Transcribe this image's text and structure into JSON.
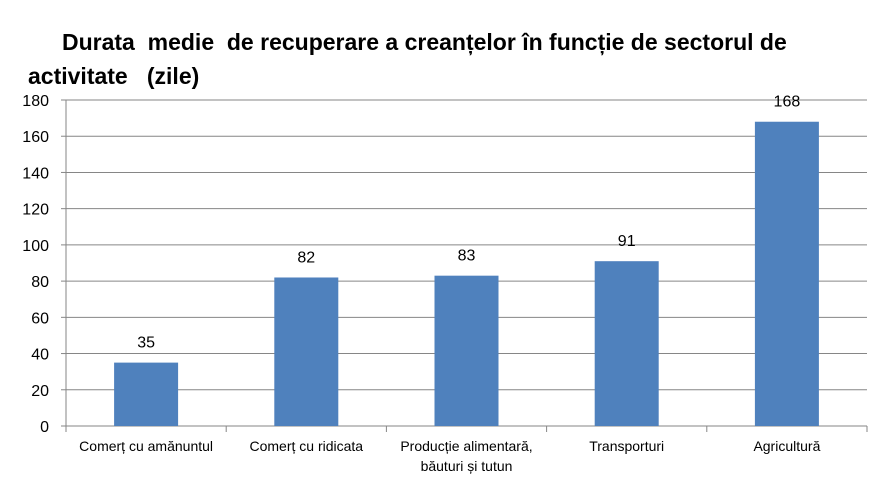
{
  "chart_data": {
    "type": "bar",
    "title_lines": [
      "Durata  medie  de recuperare a creanțelor în funcție de sectorul de",
      "activitate   (zile)"
    ],
    "categories": [
      [
        "Comerț cu amănuntul"
      ],
      [
        "Comerț cu ridicata"
      ],
      [
        "Producție alimentară,",
        "băuturi și tutun"
      ],
      [
        "Transporturi"
      ],
      [
        "Agricultură"
      ]
    ],
    "values": [
      35,
      82,
      83,
      91,
      168
    ],
    "data_labels": [
      "35",
      "82",
      "83",
      "91",
      "168"
    ],
    "yticks": [
      "0",
      "20",
      "40",
      "60",
      "80",
      "100",
      "120",
      "140",
      "160",
      "180"
    ],
    "ylim": [
      0,
      180
    ],
    "ystep": 20,
    "grid": true,
    "legend": "none",
    "bar_color": "#4f81bd",
    "grid_color": "#868686"
  }
}
